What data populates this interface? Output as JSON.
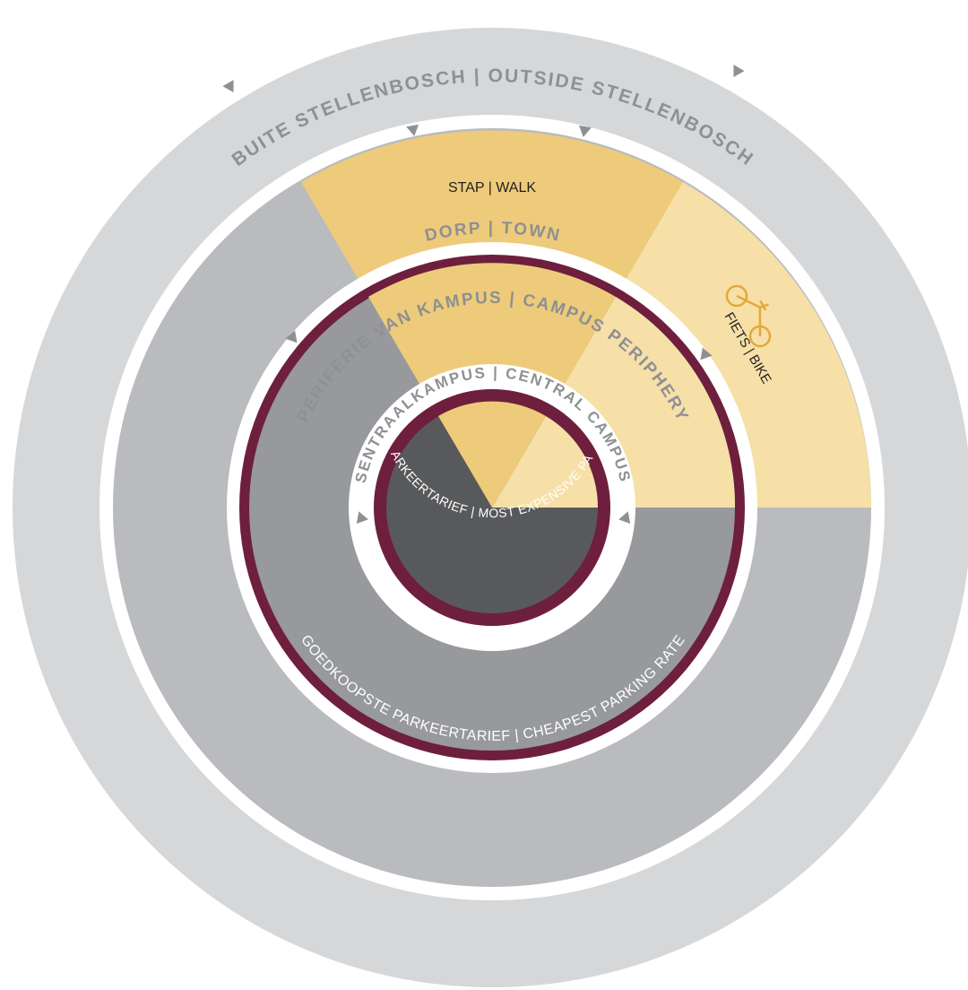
{
  "colors": {
    "outside": "#d5d7d9",
    "town": "#b9bbbe",
    "periphery": "#97999c",
    "central": "#58595b",
    "walk": "#eecb7a",
    "bike": "#f6e0a8",
    "maroon": "#6e1f3d",
    "label_grey": "#8e9092",
    "white": "#ffffff",
    "dark_text": "#231f20",
    "bike_icon": "#e2a93a"
  },
  "rings": {
    "outside": {
      "label": "BUITE STELLENBOSCH | OUTSIDE STELLENBOSCH"
    },
    "town": {
      "label": "DORP  | TOWN"
    },
    "periphery": {
      "label": "PERIFERIE VAN KAMPUS | CAMPUS PERIPHERY"
    },
    "central": {
      "label": "SENTRAALKAMPUS | CENTRAL CAMPUS"
    }
  },
  "rates": {
    "most_expensive": "DUURSTE PARKEERTARIEF | MOST EXPENSIVE PARKING RATE",
    "cheapest": "GOEDKOOPSTE PARKEERTARIEF | CHEAPEST PARKING RATE"
  },
  "modes": {
    "walk": "STAP | WALK",
    "bike": "FIETS | BIKE"
  },
  "icons": {
    "arrow": "triangle-down-icon",
    "bike": "bicycle-icon"
  }
}
